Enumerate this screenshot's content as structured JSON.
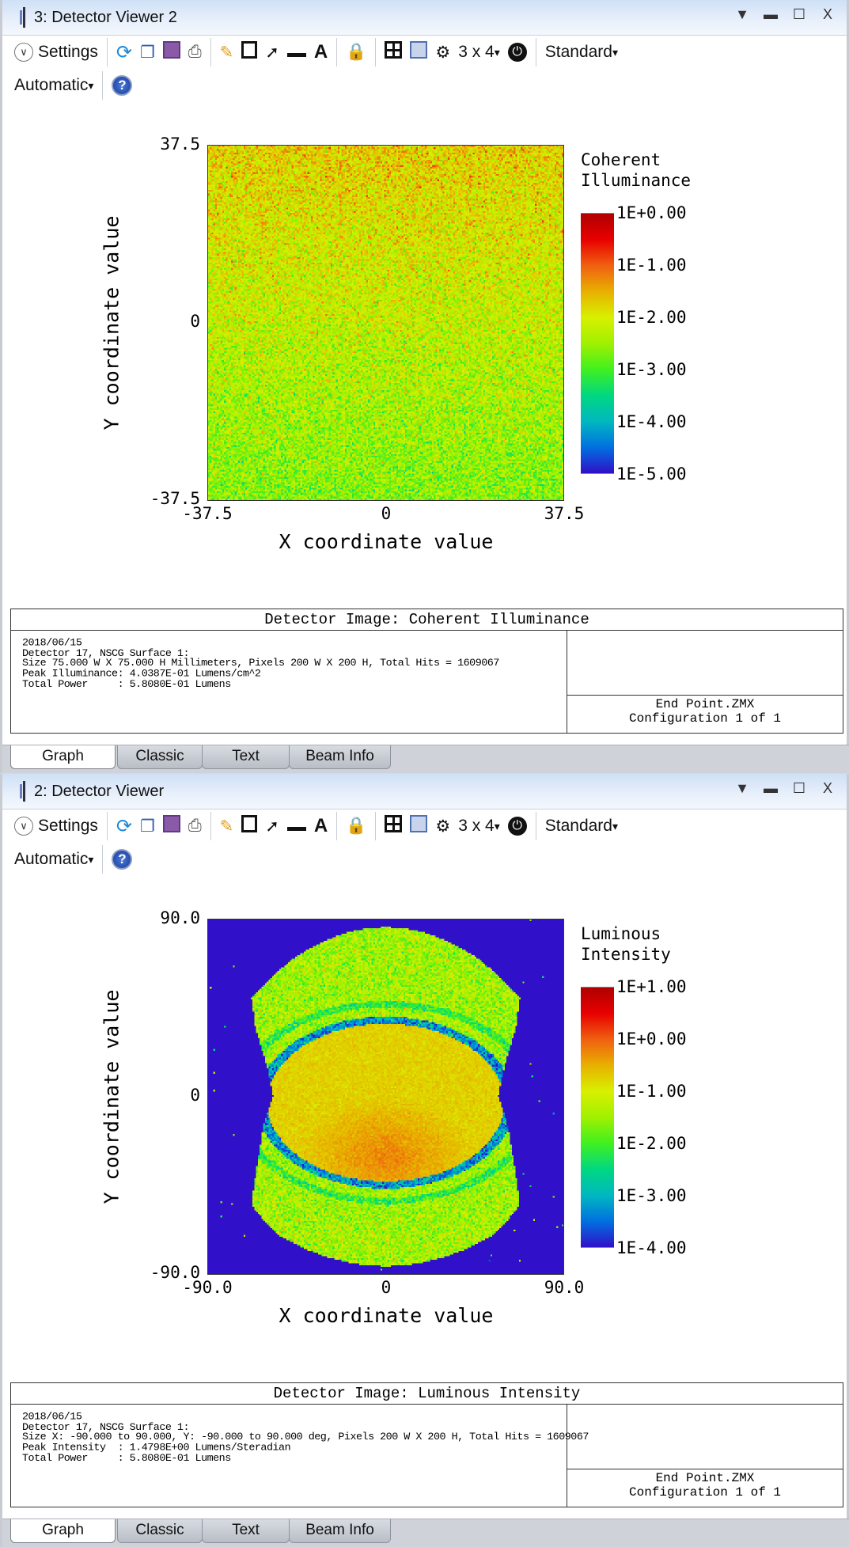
{
  "colormap": [
    "#3010c8",
    "#0070e0",
    "#00b8c0",
    "#00d880",
    "#40f020",
    "#a0f000",
    "#d8f000",
    "#e8b000",
    "#f06010",
    "#e80000",
    "#b00000"
  ],
  "toolbar": {
    "settings_label": "Settings",
    "grid_label": "3 x 4",
    "standard_label": "Standard",
    "automatic_label": "Automatic",
    "window_controls": [
      "▼",
      "▬",
      "☐",
      "X"
    ]
  },
  "tabs": [
    "Graph",
    "Classic",
    "Text",
    "Beam Info"
  ],
  "windows": [
    {
      "title": "3: Detector Viewer 2",
      "plot": {
        "y_ticks": [
          "37.5",
          "0",
          "-37.5"
        ],
        "x_ticks": [
          "-37.5",
          "0",
          "37.5"
        ],
        "xlabel": "X coordinate value",
        "ylabel": "Y coordinate value",
        "legend_title": [
          "Coherent",
          "Illuminance"
        ],
        "colorbar_labels": [
          "1E+0.00",
          "1E-1.00",
          "1E-2.00",
          "1E-3.00",
          "1E-4.00",
          "1E-5.00"
        ]
      },
      "info": {
        "header": "Detector Image: Coherent Illuminance",
        "lines": [
          "2018/06/15",
          "Detector 17, NSCG Surface 1:",
          "Size 75.000 W X 75.000 H Millimeters, Pixels 200 W X 200 H, Total Hits = 1609067",
          "Peak Illuminance: 4.0387E-01 Lumens/cm^2",
          "Total Power     : 5.8080E-01 Lumens"
        ],
        "file": "End Point.ZMX",
        "config": "Configuration 1 of 1"
      }
    },
    {
      "title": "2: Detector Viewer",
      "plot": {
        "y_ticks": [
          "90.0",
          "0",
          "-90.0"
        ],
        "x_ticks": [
          "-90.0",
          "0",
          "90.0"
        ],
        "xlabel": "X coordinate value",
        "ylabel": "Y coordinate value",
        "legend_title": [
          "Luminous",
          "Intensity"
        ],
        "colorbar_labels": [
          "1E+1.00",
          "1E+0.00",
          "1E-1.00",
          "1E-2.00",
          "1E-3.00",
          "1E-4.00"
        ]
      },
      "info": {
        "header": "Detector Image: Luminous Intensity",
        "lines": [
          "2018/06/15",
          "Detector 17, NSCG Surface 1:",
          "Size X: -90.000 to 90.000, Y: -90.000 to 90.000 deg, Pixels 200 W X 200 H, Total Hits = 1609067",
          "Peak Intensity  : 1.4798E+00 Lumens/Steradian",
          "Total Power     : 5.8080E-01 Lumens"
        ],
        "file": "End Point.ZMX",
        "config": "Configuration 1 of 1"
      }
    }
  ]
}
